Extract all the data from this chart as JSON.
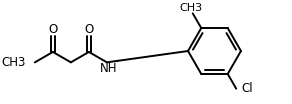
{
  "bg_color": "#ffffff",
  "line_color": "#000000",
  "line_width": 1.4,
  "font_size": 8.5,
  "atoms": {
    "O_label": "O",
    "NH_label": "NH",
    "Cl_label": "Cl",
    "CH3_label": "CH3"
  },
  "figsize": [
    2.92,
    1.04
  ],
  "dpi": 100
}
